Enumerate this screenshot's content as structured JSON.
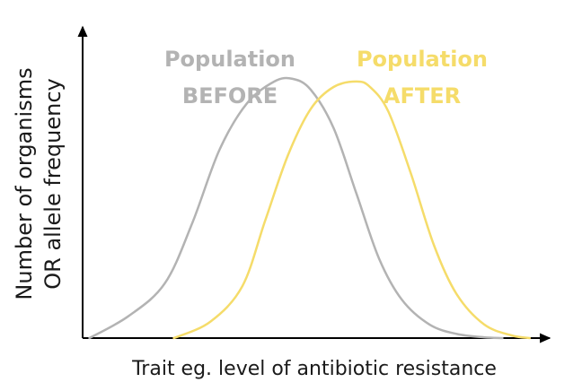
{
  "chart_data": {
    "type": "line",
    "title": "",
    "xlabel": "Trait eg. level of antibiotic resistance",
    "ylabel_lines": [
      "Number of organisms",
      "OR allele frequency"
    ],
    "grid": false,
    "legend": "inline-top",
    "xlim": [
      0,
      10
    ],
    "ylim": [
      0,
      10
    ],
    "series": [
      {
        "name": "Population BEFORE",
        "label_lines": [
          "Population",
          "BEFORE"
        ],
        "color": "#b3b3b3",
        "x": [
          0.15,
          1.0,
          1.8,
          2.4,
          3.0,
          3.6,
          4.2,
          4.6,
          5.0,
          5.5,
          6.0,
          6.5,
          7.0,
          7.6,
          8.2,
          8.8,
          9.2
        ],
        "y": [
          0.0,
          0.8,
          2.0,
          4.2,
          6.9,
          8.6,
          9.4,
          9.5,
          9.1,
          7.7,
          5.3,
          2.9,
          1.4,
          0.5,
          0.15,
          0.03,
          0.0
        ]
      },
      {
        "name": "Population AFTER",
        "label_lines": [
          "Population",
          "AFTER"
        ],
        "color": "#f5dc6a",
        "x": [
          2.0,
          2.8,
          3.5,
          4.0,
          4.5,
          5.0,
          5.5,
          6.0,
          6.3,
          6.7,
          7.2,
          7.7,
          8.2,
          8.8,
          9.4,
          9.8
        ],
        "y": [
          0.0,
          0.6,
          1.9,
          4.3,
          6.7,
          8.4,
          9.2,
          9.4,
          9.2,
          8.3,
          6.0,
          3.4,
          1.6,
          0.5,
          0.1,
          0.0
        ]
      }
    ]
  }
}
